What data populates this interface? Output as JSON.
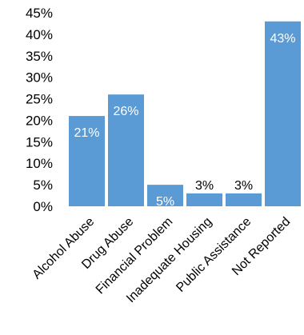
{
  "chart_data": {
    "type": "bar",
    "title": "",
    "xlabel": "",
    "ylabel": "",
    "categories": [
      "Alcohol Abuse",
      "Drug Abuse",
      "Financial Problem",
      "Inadequate Housing",
      "Public Assistance",
      "Not Reported"
    ],
    "values": [
      21,
      26,
      5,
      3,
      3,
      43
    ],
    "data_labels": [
      "21%",
      "26%",
      "5%",
      "3%",
      "3%",
      "43%"
    ],
    "y_ticks": [
      0,
      5,
      10,
      15,
      20,
      25,
      30,
      35,
      40,
      45
    ],
    "y_tick_labels": [
      "0%",
      "5%",
      "10%",
      "15%",
      "20%",
      "25%",
      "30%",
      "35%",
      "40%",
      "45%"
    ],
    "ylim": [
      0,
      45
    ],
    "grid": false,
    "legend": "none",
    "colors": {
      "bar": "#5b9bd5",
      "label_inside": "#ffffff",
      "label_outside": "#000000"
    }
  }
}
